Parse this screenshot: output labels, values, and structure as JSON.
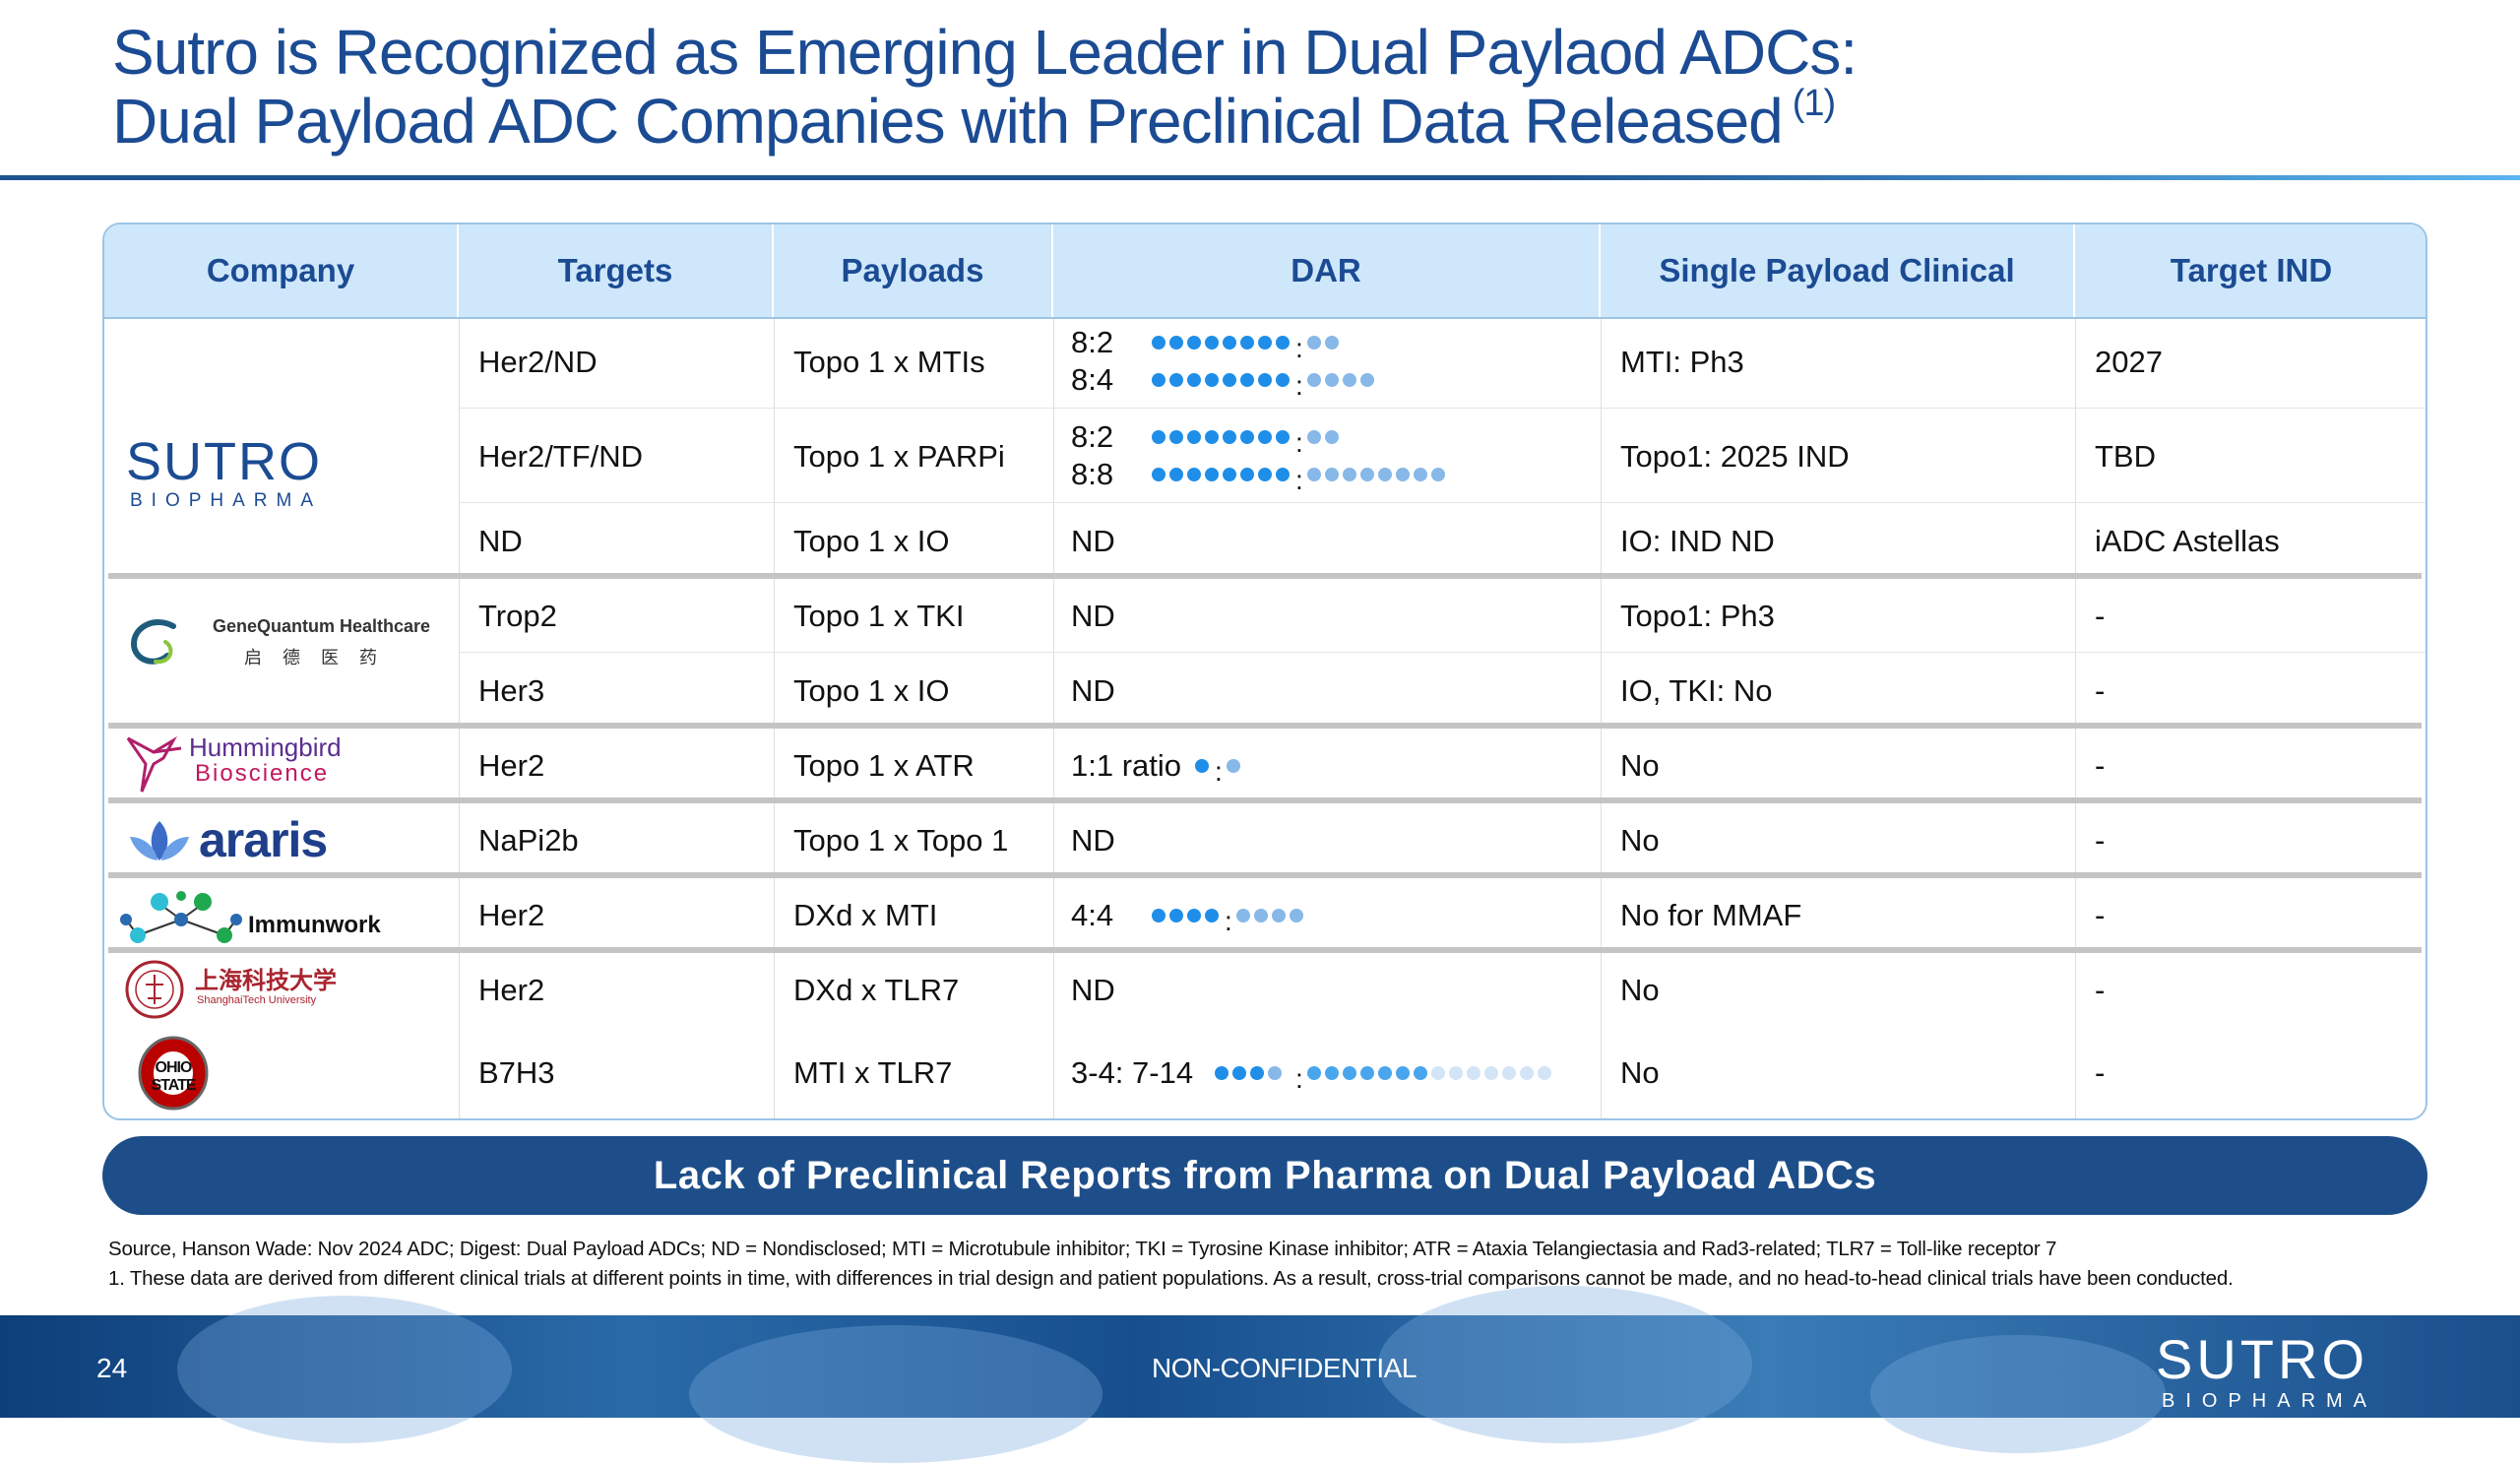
{
  "title": {
    "line1": "Sutro is Recognized as Emerging Leader in Dual Paylaod ADCs:",
    "line2": "Dual Payload ADC Companies with Preclinical Data Released",
    "superscript": "(1)"
  },
  "table": {
    "headers": [
      "Company",
      "Targets",
      "Payloads",
      "DAR",
      "Single Payload Clinical",
      "Target IND"
    ],
    "rows": [
      {
        "company": "Sutro Biopharma",
        "target": "Her2/ND",
        "payload": "Topo 1 x MTIs",
        "dar_lines": [
          "8:2",
          "8:4"
        ],
        "clinical": "MTI: Ph3",
        "ind": "2027"
      },
      {
        "company": "Sutro Biopharma",
        "target": "Her2/TF/ND",
        "payload": "Topo 1 x PARPi",
        "dar_lines": [
          "8:2",
          "8:8"
        ],
        "clinical": "Topo1: 2025 IND",
        "ind": "TBD"
      },
      {
        "company": "Sutro Biopharma",
        "target": "ND",
        "payload": "Topo 1 x IO",
        "dar": "ND",
        "clinical": "IO: IND ND",
        "ind": "iADC  Astellas"
      },
      {
        "company": "GeneQuantum Healthcare",
        "target": "Trop2",
        "payload": "Topo 1 x TKI",
        "dar": "ND",
        "clinical": "Topo1: Ph3",
        "ind": "-"
      },
      {
        "company": "GeneQuantum Healthcare",
        "target": "Her3",
        "payload": "Topo 1 x IO",
        "dar": "ND",
        "clinical": "IO, TKI: No",
        "ind": "-"
      },
      {
        "company": "Hummingbird Bioscience",
        "target": "Her2",
        "payload": "Topo 1 x ATR",
        "dar": "1:1 ratio",
        "clinical": "No",
        "ind": "-"
      },
      {
        "company": "araris",
        "target": "NaPi2b",
        "payload": "Topo 1 x Topo 1",
        "dar": "ND",
        "clinical": "No",
        "ind": "-"
      },
      {
        "company": "Immunwork",
        "target": "Her2",
        "payload": "DXd x MTI",
        "dar": "4:4",
        "clinical": "No for MMAF",
        "ind": "-"
      },
      {
        "company": "ShanghaiTech University",
        "target": "Her2",
        "payload": "DXd x TLR7",
        "dar": "ND",
        "clinical": "No",
        "ind": "-"
      },
      {
        "company": "Ohio State",
        "target": "B7H3",
        "payload": "MTI x TLR7",
        "dar": "3-4: 7-14",
        "clinical": "No",
        "ind": "-"
      }
    ]
  },
  "logos": {
    "sutro_main": "SUTRO",
    "sutro_sub": "BIOPHARMA",
    "genequantum_en": "GeneQuantum Healthcare",
    "genequantum_cn": "启  德  医  药",
    "hummingbird_1": "Hummingbird",
    "hummingbird_2": "Bioscience",
    "araris": "araris",
    "immunwork": "Immunwork",
    "shanghaitech_cn": "上海科技大学",
    "shanghaitech_en": "ShanghaiTech University",
    "ohiostate": "OHIO STATE"
  },
  "banner": "Lack of Preclinical Reports from Pharma on Dual Payload ADCs",
  "footnotes": {
    "source": "Source, Hanson Wade: Nov 2024 ADC; Digest: Dual Payload ADCs; ND = Nondisclosed; MTI = Microtubule inhibitor; TKI = Tyrosine Kinase inhibitor; ATR = Ataxia Telangiectasia and Rad3-related; TLR7 = Toll-like receptor 7",
    "note1": "1.   These data are derived from different clinical trials at different points in time, with differences in trial design and patient populations. As a result, cross-trial comparisons cannot be made, and no head-to-head clinical trials have been conducted."
  },
  "footer": {
    "page_number": "24",
    "confidentiality": "NON-CONFIDENTIAL",
    "logo_main": "SUTRO",
    "logo_sub": "BIOPHARMA"
  },
  "colors": {
    "title": "#1b4b93",
    "header_bg": "#cfe7fb",
    "banner_bg": "#1d4e89",
    "dot_primary": "#1f8ee8",
    "dot_secondary": "#87b8e8"
  }
}
